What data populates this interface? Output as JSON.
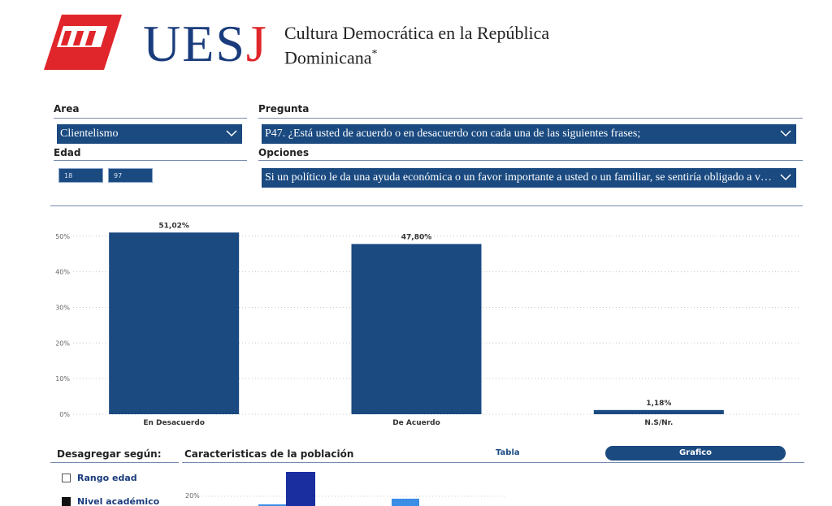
{
  "header": {
    "brand": "UES",
    "brand_j": "J",
    "title_line1": "Cultura Democrática en la República",
    "title_line2": "Dominicana",
    "title_mark": "*"
  },
  "filters": {
    "area_label": "Area",
    "area_value": "Clientelismo",
    "pregunta_label": "Pregunta",
    "pregunta_value": "P47. ¿Está usted de acuerdo o en desacuerdo con cada una de las siguientes frases;",
    "edad_label": "Edad",
    "edad_min": "18",
    "edad_max": "97",
    "opciones_label": "Opciones",
    "opciones_value": "Si un político le da una ayuda económica o un favor importante a usted o un familiar, se sentiría obligado a v…"
  },
  "chart_data": {
    "type": "bar",
    "categories": [
      "En Desacuerdo",
      "De Acuerdo",
      "N.S/Nr."
    ],
    "values": [
      51.02,
      47.8,
      1.18
    ],
    "value_labels": [
      "51,02%",
      "47,80%",
      "1,18%"
    ],
    "y_ticks": [
      "0%",
      "10%",
      "20%",
      "30%",
      "40%",
      "50%"
    ],
    "ylim": [
      0,
      52
    ],
    "grid": true,
    "bar_color": "#1a4a80"
  },
  "bottom": {
    "disagg_title": "Desagregar según:",
    "pop_title": "Caracteristicas de la población",
    "tab_tabla": "Tabla",
    "tab_grafico": "Grafico",
    "options": [
      {
        "label": "Rango edad",
        "checked": false
      },
      {
        "label": "Nivel académico",
        "checked": true
      }
    ],
    "mini_chart_tick": "20%"
  },
  "colors": {
    "primary": "#1a4a80",
    "accent": "#e0262b"
  }
}
